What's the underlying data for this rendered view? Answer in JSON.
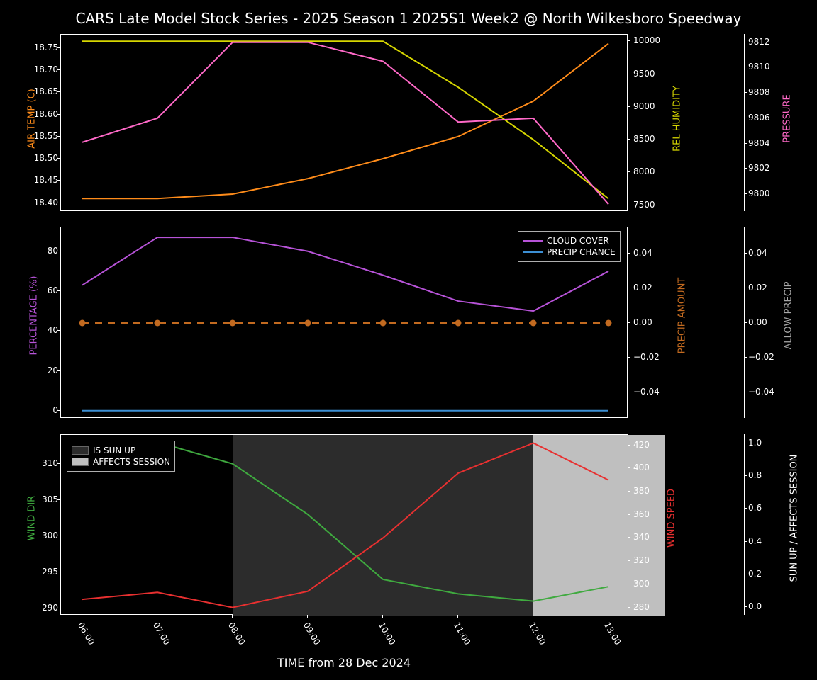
{
  "title": "CARS Late Model Stock Series - 2025 Season 1 2025S1 Week2 @ North Wilkesboro Speedway",
  "xaxis_label": "TIME from 28 Dec 2024",
  "background_color": "#000000",
  "text_color": "#ffffff",
  "times": [
    "06:00",
    "07:00",
    "08:00",
    "09:00",
    "10:00",
    "11:00",
    "12:00",
    "13:00"
  ],
  "panel1": {
    "air_temp": {
      "label": "AIR TEMP (C)",
      "color": "#ff8c1a",
      "values": [
        18.41,
        18.41,
        18.42,
        18.455,
        18.5,
        18.55,
        18.63,
        18.76
      ],
      "ticks": [
        18.4,
        18.45,
        18.5,
        18.55,
        18.6,
        18.65,
        18.7,
        18.75
      ],
      "ylim": [
        18.38,
        18.78
      ]
    },
    "rel_humidity": {
      "label": "REL HUMIDITY",
      "color": "#d6d600",
      "values": [
        10000,
        10000,
        10000,
        10000,
        10000,
        9300,
        8500,
        7600
      ],
      "ticks": [
        7500,
        8000,
        8500,
        9000,
        9500,
        10000
      ],
      "ylim": [
        7400,
        10100
      ]
    },
    "pressure": {
      "label": "PRESSURE",
      "color": "#ff69c8",
      "values": [
        9804.1,
        9806.0,
        9812.0,
        9812.0,
        9810.5,
        9805.7,
        9806.0,
        9799.2
      ],
      "ticks": [
        9800,
        9802,
        9804,
        9806,
        9808,
        9810,
        9812
      ],
      "ylim": [
        9798.6,
        9812.6
      ]
    }
  },
  "panel2": {
    "percentage": {
      "label": "PERCENTAGE (%)",
      "color": "#b753d8",
      "cloud_values": [
        63,
        87,
        87,
        80,
        68,
        55,
        50,
        70
      ],
      "precip_chance_values": [
        0,
        0,
        0,
        0,
        0,
        0,
        0,
        0
      ],
      "precip_chance_color": "#3c8fd4",
      "ticks": [
        0,
        20,
        40,
        60,
        80
      ],
      "ylim": [
        -4,
        92
      ]
    },
    "precip_amount": {
      "label": "PRECIP AMOUNT",
      "color": "#c26a20",
      "values": [
        0,
        0,
        0,
        0,
        0,
        0,
        0,
        0
      ],
      "dash": true,
      "markers": true,
      "ticks": [
        -0.04,
        -0.02,
        0.0,
        0.02,
        0.04
      ],
      "ylim": [
        -0.055,
        0.055
      ]
    },
    "allow_precip": {
      "label": "ALLOW PRECIP",
      "color": "#a8a8a8",
      "ticks": [
        -0.04,
        -0.02,
        0.0,
        0.02,
        0.04
      ],
      "ylim": [
        -0.055,
        0.055
      ]
    },
    "legend": {
      "items": [
        {
          "label": "CLOUD COVER",
          "color": "#b753d8"
        },
        {
          "label": "PRECIP CHANCE",
          "color": "#3c8fd4"
        }
      ]
    }
  },
  "panel3": {
    "wind_dir": {
      "label": "WIND DIR",
      "color": "#3faa3f",
      "values": [
        311,
        313,
        310,
        303,
        294,
        292,
        291,
        293
      ],
      "ticks": [
        290,
        295,
        300,
        305,
        310
      ],
      "ylim": [
        289,
        314
      ]
    },
    "wind_speed": {
      "label": "WIND SPEED",
      "color": "#e83030",
      "values": [
        287,
        293,
        280,
        294,
        340,
        396,
        422,
        390
      ],
      "ticks": [
        280,
        300,
        320,
        340,
        360,
        380,
        400,
        420
      ],
      "ylim": [
        273,
        429
      ]
    },
    "sun_affects": {
      "label": "SUN UP / AFFECTS SESSION",
      "color": "#ffffff",
      "ticks": [
        0.0,
        0.2,
        0.4,
        0.6,
        0.8,
        1.0
      ],
      "ylim": [
        -0.05,
        1.05
      ]
    },
    "regions": [
      {
        "from": "08:00",
        "to": "12:00",
        "color": "#2c2c2c",
        "label": "IS SUN UP"
      },
      {
        "from": "12:00",
        "to": "13:45",
        "color": "#bfbfbf",
        "label": "AFFECTS SESSION"
      }
    ],
    "legend": {
      "items": [
        {
          "label": "IS SUN UP",
          "color": "#2c2c2c"
        },
        {
          "label": "AFFECTS SESSION",
          "color": "#bfbfbf"
        }
      ]
    }
  }
}
